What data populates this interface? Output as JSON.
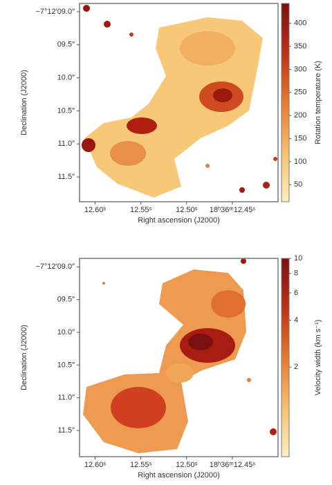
{
  "chart_data": [
    {
      "type": "heatmap",
      "xlabel": "Right ascension (J2000)",
      "ylabel": "Declination (J2000)",
      "colorbar_label": "Rotation temperature (K)",
      "xlim": [
        12.617,
        12.4
      ],
      "xticks": [
        {
          "value": 12.6,
          "label": "12.60ˢ"
        },
        {
          "value": 12.55,
          "label": "12.55ˢ"
        },
        {
          "value": 12.5,
          "label": "12.50ˢ"
        },
        {
          "value": 12.45,
          "label": "18ʰ36ᵐ12.45ˢ"
        }
      ],
      "ylim": [
        11.875,
        8.875
      ],
      "yticks": [
        {
          "value": 9.0,
          "label": "−7°12′09.0″"
        },
        {
          "value": 9.5,
          "label": "09.5″"
        },
        {
          "value": 10.0,
          "label": "10.0″"
        },
        {
          "value": 10.5,
          "label": "10.5″"
        },
        {
          "value": 11.0,
          "label": "11.0″"
        },
        {
          "value": 11.5,
          "label": "11.5″"
        }
      ],
      "clim": [
        13,
        443
      ],
      "cticks": [
        50,
        100,
        150,
        200,
        250,
        300,
        350,
        400
      ],
      "clog": false,
      "colors": [
        "#fbeec0",
        "#f5c070",
        "#e67a30",
        "#c03018",
        "#7a1010"
      ]
    },
    {
      "type": "heatmap",
      "xlabel": "Right ascension (J2000)",
      "ylabel": "Declination (J2000)",
      "colorbar_label": "Velocity width (km s⁻¹)",
      "xlim": [
        12.617,
        12.4
      ],
      "xticks": [
        {
          "value": 12.6,
          "label": "12.60ˢ"
        },
        {
          "value": 12.55,
          "label": "12.55ˢ"
        },
        {
          "value": 12.5,
          "label": "12.50ˢ"
        },
        {
          "value": 12.45,
          "label": "18ʰ36ᵐ12.45ˢ"
        }
      ],
      "ylim": [
        11.9,
        8.87
      ],
      "yticks": [
        {
          "value": 9.0,
          "label": "−7°12′09.0″"
        },
        {
          "value": 9.5,
          "label": "09.5″"
        },
        {
          "value": 10.0,
          "label": "10.0″"
        },
        {
          "value": 10.5,
          "label": "10.5″"
        },
        {
          "value": 11.0,
          "label": "11.0″"
        },
        {
          "value": 11.5,
          "label": "11.5″"
        }
      ],
      "clim": [
        0.53,
        10
      ],
      "cticks": [
        2,
        4,
        6,
        8,
        10
      ],
      "clog": true,
      "colors": [
        "#fbeec0",
        "#f5c070",
        "#e67a30",
        "#c03018",
        "#7a1010"
      ]
    }
  ]
}
